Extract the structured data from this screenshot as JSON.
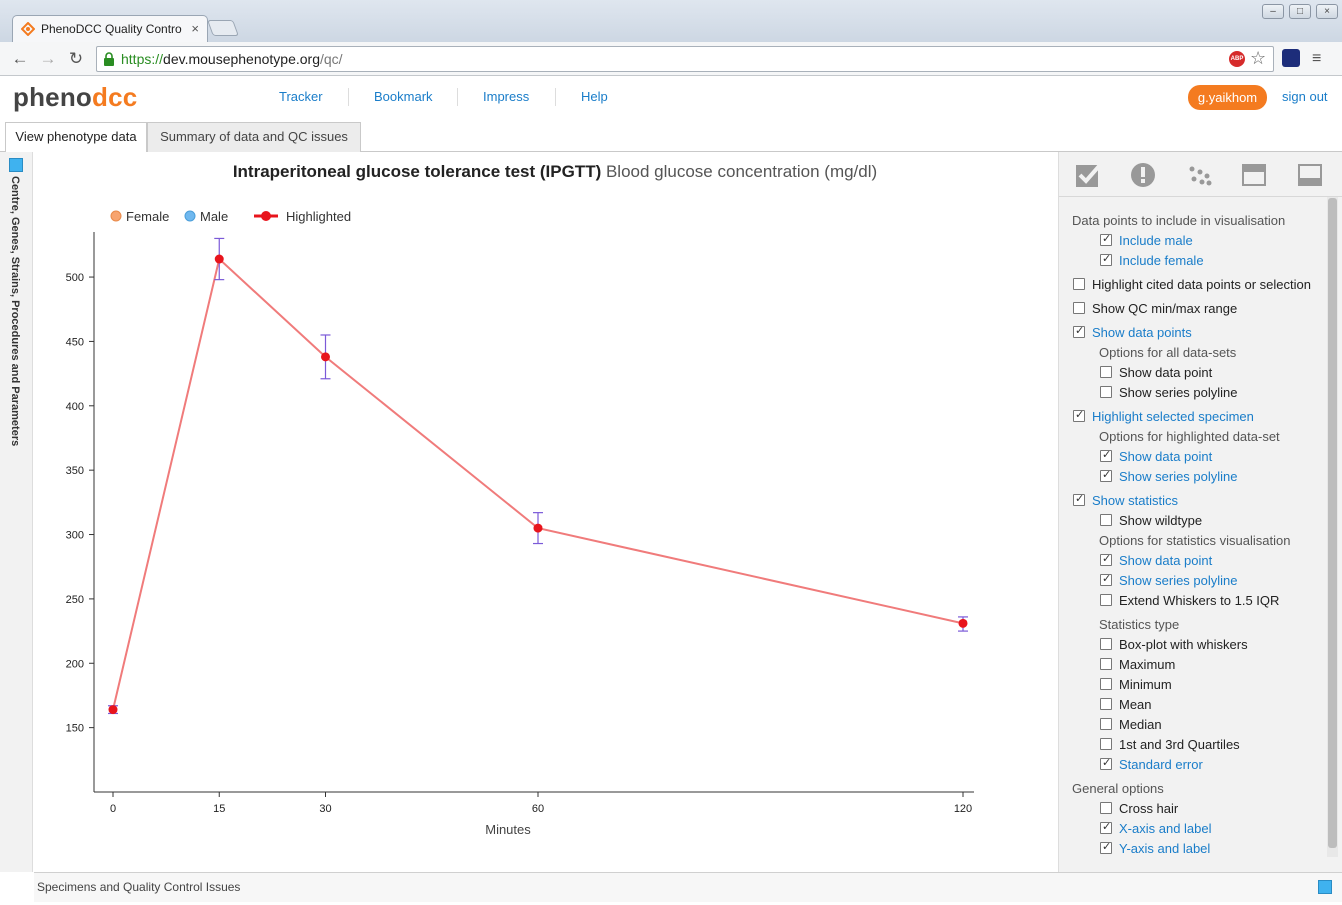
{
  "browser": {
    "tab_title": "PhenoDCC Quality Contro",
    "url_scheme": "https://",
    "url_host": "dev.mousephenotype.org",
    "url_path": "/qc/",
    "abp_label": "ABP"
  },
  "header": {
    "logo_part1": "pheno",
    "logo_part2": "dcc",
    "nav": [
      "Tracker",
      "Bookmark",
      "Impress",
      "Help"
    ],
    "user": "g.yaikhom",
    "sign_out": "sign out"
  },
  "page_tabs": [
    "View phenotype data",
    "Summary of data and QC issues"
  ],
  "left_panel_label": "Centre, Genes, Strains, Procedures and Parameters",
  "chart": {
    "title_bold": "Intraperitoneal glucose tolerance test (IPGTT)",
    "title_rest": "Blood glucose concentration (mg/dl)"
  },
  "chart_data": {
    "type": "line",
    "title": "Intraperitoneal glucose tolerance test (IPGTT) Blood glucose concentration (mg/dl)",
    "xlabel": "Minutes",
    "ylabel": "",
    "x_ticks": [
      0,
      15,
      30,
      60,
      120
    ],
    "y_ticks": [
      150,
      200,
      250,
      300,
      350,
      400,
      450,
      500
    ],
    "xlim": [
      0,
      120
    ],
    "ylim": [
      100,
      535
    ],
    "legend": [
      {
        "name": "Female",
        "color": "#f7a46f"
      },
      {
        "name": "Male",
        "color": "#6fb8ef"
      },
      {
        "name": "Highlighted",
        "color": "#e8141c"
      }
    ],
    "series": [
      {
        "name": "Highlighted",
        "x": [
          0,
          15,
          30,
          60,
          120
        ],
        "y": [
          164,
          514,
          438,
          305,
          231
        ],
        "err_low": [
          161,
          498,
          421,
          293,
          225
        ],
        "err_high": [
          167,
          530,
          455,
          317,
          236
        ],
        "line_color": "#f07b7b",
        "point_color": "#e8141c",
        "error_color": "#7b5ad8"
      }
    ],
    "grid": false,
    "legend_position": "top-left"
  },
  "options": {
    "section1": "Data points to include in visualisation",
    "include_male": "Include male",
    "include_female": "Include female",
    "highlight_cited": "Highlight cited data points or selection",
    "show_qc_range": "Show QC min/max range",
    "show_data_points": "Show data points",
    "opts_all": "Options for all data-sets",
    "show_data_point": "Show data point",
    "show_series_polyline": "Show series polyline",
    "highlight_selected": "Highlight selected specimen",
    "opts_highlighted": "Options for highlighted data-set",
    "show_statistics": "Show statistics",
    "show_wildtype": "Show wildtype",
    "opts_stats": "Options for statistics visualisation",
    "extend_whiskers": "Extend Whiskers to 1.5 IQR",
    "stats_type": "Statistics type",
    "box_plot": "Box-plot with whiskers",
    "maximum": "Maximum",
    "minimum": "Minimum",
    "mean": "Mean",
    "median": "Median",
    "quartiles": "1st and 3rd Quartiles",
    "standard_error": "Standard error",
    "general": "General options",
    "cross_hair": "Cross hair",
    "x_axis": "X-axis and label",
    "y_axis": "Y-axis and label"
  },
  "bottom_bar": "Specimens and Quality Control Issues"
}
